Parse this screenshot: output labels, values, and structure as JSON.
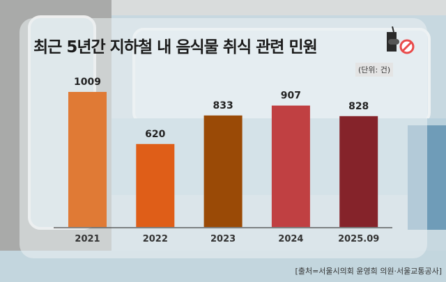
{
  "title": "최근 5년간 지하철 내 음식물 취식 관련 민원",
  "unit_label": "(단위: 건)",
  "source": "[출처=서울시의회 윤영희 의원·서울교통공사]",
  "icons": [
    "food-drink-icon",
    "no-sign-icon"
  ],
  "chart_data": {
    "type": "bar",
    "title": "최근 5년간 지하철 내 음식물 취식 관련 민원",
    "xlabel": "",
    "ylabel": "건",
    "categories": [
      "2021",
      "2022",
      "2023",
      "2024",
      "2025.09"
    ],
    "values": [
      1009,
      620,
      833,
      907,
      828
    ],
    "colors": [
      "#E07A35",
      "#DF5E18",
      "#9A4A06",
      "#C04042",
      "#85232A"
    ],
    "ylim": [
      0,
      1009
    ],
    "grid": false,
    "legend": "none"
  }
}
